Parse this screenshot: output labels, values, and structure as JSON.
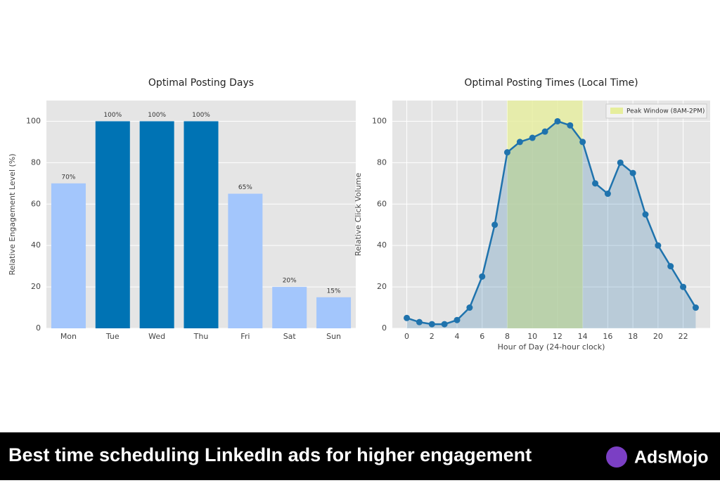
{
  "chart_data": [
    {
      "type": "bar",
      "title": "Optimal Posting Days",
      "ylabel": "Relative Engagement Level (%)",
      "categories": [
        "Mon",
        "Tue",
        "Wed",
        "Thu",
        "Fri",
        "Sat",
        "Sun"
      ],
      "values": [
        70,
        100,
        100,
        100,
        65,
        20,
        15
      ],
      "value_labels": [
        "70%",
        "100%",
        "100%",
        "100%",
        "65%",
        "20%",
        "15%"
      ],
      "colors": [
        "#a3c6fc",
        "#0073b4",
        "#0073b4",
        "#0073b4",
        "#a3c6fc",
        "#a3c6fc",
        "#a3c6fc"
      ],
      "ylim": [
        0,
        110
      ],
      "yticks": [
        0,
        20,
        40,
        60,
        80,
        100
      ],
      "grid": true
    },
    {
      "type": "line",
      "title": "Optimal Posting Times (Local Time)",
      "xlabel": "Hour of Day (24-hour clock)",
      "ylabel": "Relative Click Volume",
      "x": [
        0,
        1,
        2,
        3,
        4,
        5,
        6,
        7,
        8,
        9,
        10,
        11,
        12,
        13,
        14,
        15,
        16,
        17,
        18,
        19,
        20,
        21,
        22,
        23
      ],
      "values": [
        5,
        3,
        2,
        2,
        4,
        10,
        25,
        50,
        85,
        90,
        92,
        95,
        100,
        98,
        90,
        70,
        65,
        80,
        75,
        55,
        40,
        30,
        20,
        10
      ],
      "color": "#1f73ad",
      "fill": true,
      "span": {
        "x": [
          8,
          14
        ],
        "label": "Peak Window (8AM-2PM)",
        "color": "#e6ee9c"
      },
      "legend": "upper right",
      "xlim": [
        -1.15,
        24.15
      ],
      "xticks": [
        0,
        2,
        4,
        6,
        8,
        10,
        12,
        14,
        16,
        18,
        20,
        22
      ],
      "ylim": [
        0,
        110
      ],
      "yticks": [
        0,
        20,
        40,
        60,
        80,
        100
      ],
      "grid": true
    }
  ],
  "banner": {
    "title": "Best time scheduling LinkedIn ads for higher engagement",
    "brand": "AdsMojo"
  }
}
